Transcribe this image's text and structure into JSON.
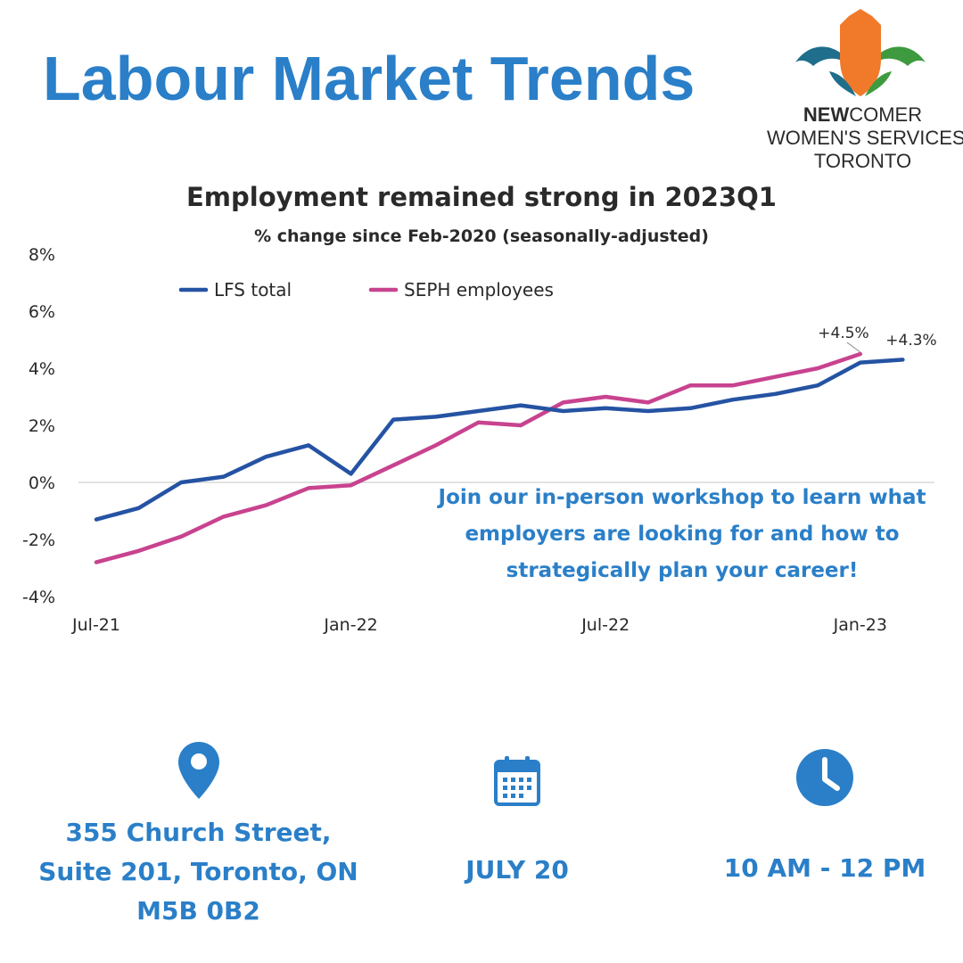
{
  "header": {
    "title": "Labour Market Trends"
  },
  "logo": {
    "line1_bold": "NEW",
    "line1_rest": "COMER",
    "line2": "WOMEN'S SERVICES",
    "line3": "TORONTO",
    "colors": {
      "shield": "#f07a2a",
      "left_leaf": "#1e6e8c",
      "right_leaf": "#3e9a3e"
    }
  },
  "promo": {
    "line1": "Join our in-person workshop to learn what",
    "line2": "employers are looking for and how to",
    "line3": "strategically plan your career!"
  },
  "info": {
    "location": {
      "icon": "map-pin-icon",
      "line1": "355 Church Street,",
      "line2": "Suite 201, Toronto, ON",
      "line3": "M5B 0B2"
    },
    "date": {
      "icon": "calendar-icon",
      "text": "JULY  20"
    },
    "time": {
      "icon": "clock-icon",
      "text": "10 AM - 12 PM"
    }
  },
  "colors": {
    "accent": "#2a7fc8",
    "lfs": "#2553a3",
    "seph": "#c8438f",
    "text": "#2a2a2a"
  },
  "chart_data": {
    "type": "line",
    "title": "Employment remained strong in 2023Q1",
    "subtitle": "% change since Feb-2020 (seasonally-adjusted)",
    "x": [
      "Jul-21",
      "Aug-21",
      "Sep-21",
      "Oct-21",
      "Nov-21",
      "Dec-21",
      "Jan-22",
      "Feb-22",
      "Mar-22",
      "Apr-22",
      "May-22",
      "Jun-22",
      "Jul-22",
      "Aug-22",
      "Sep-22",
      "Oct-22",
      "Nov-22",
      "Dec-22",
      "Jan-23",
      "Feb-23"
    ],
    "x_tick_labels": [
      "Jul-21",
      "Jan-22",
      "Jul-22",
      "Jan-23"
    ],
    "y_tick_labels": [
      "8%",
      "6%",
      "4%",
      "2%",
      "0%",
      "-2%",
      "-4%"
    ],
    "ylim": [
      -4,
      8
    ],
    "legend_position": "top-left",
    "series": [
      {
        "name": "LFS total",
        "color": "#2553a3",
        "values": [
          -1.3,
          -0.9,
          0.0,
          0.2,
          0.9,
          1.3,
          0.3,
          2.2,
          2.3,
          2.5,
          2.7,
          2.5,
          2.6,
          2.5,
          2.6,
          2.9,
          3.1,
          3.4,
          4.2,
          4.3
        ]
      },
      {
        "name": "SEPH employees",
        "color": "#c8438f",
        "values": [
          -2.8,
          -2.4,
          -1.9,
          -1.2,
          -0.8,
          -0.2,
          -0.1,
          0.6,
          1.3,
          2.1,
          2.0,
          2.8,
          3.0,
          2.8,
          3.4,
          3.4,
          3.7,
          4.0,
          4.5,
          null
        ]
      }
    ],
    "annotations": [
      {
        "text": "+4.5%",
        "series": "SEPH employees",
        "x": "Jan-23"
      },
      {
        "text": "+4.3%",
        "series": "LFS total",
        "x": "Feb-23"
      }
    ]
  }
}
